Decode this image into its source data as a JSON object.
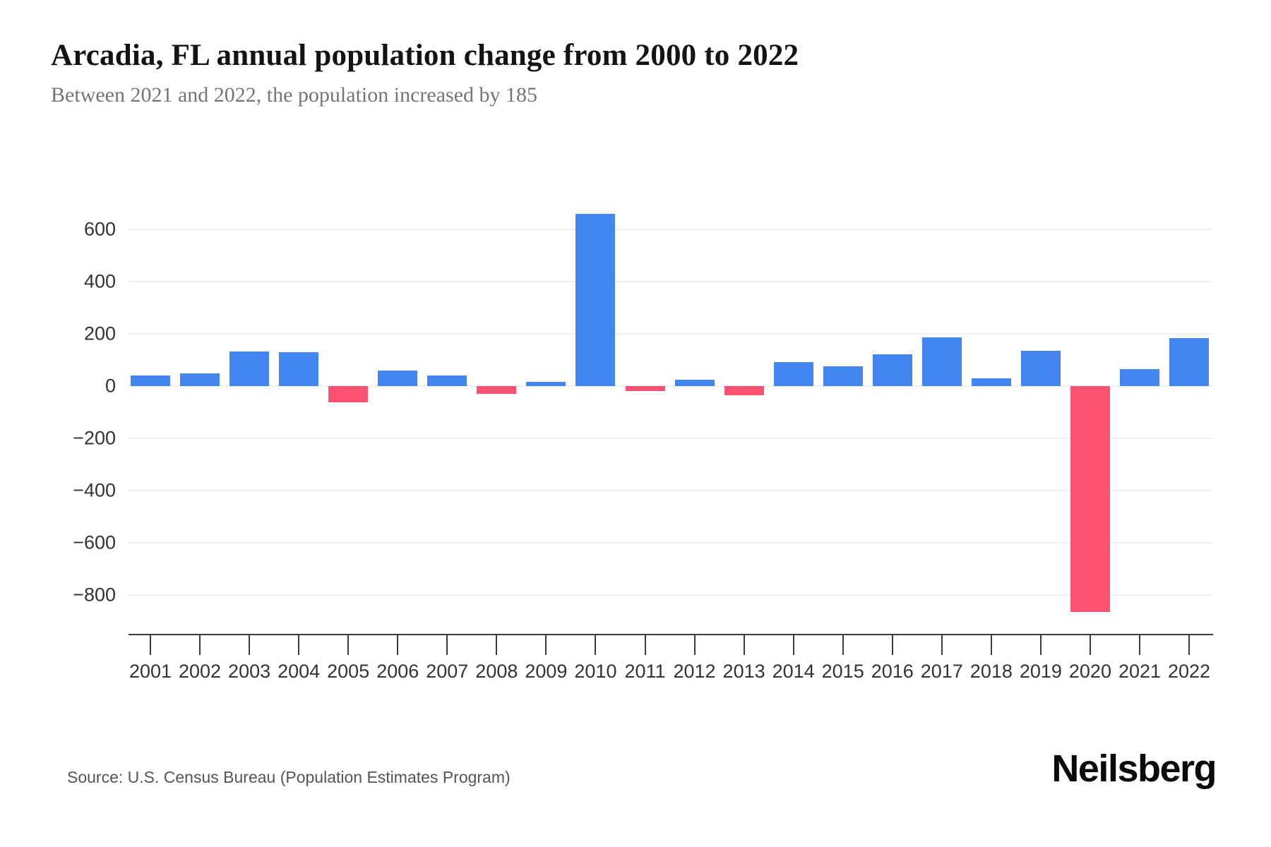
{
  "header": {
    "title": "Arcadia, FL annual population change from 2000 to 2022",
    "subtitle": "Between 2021 and 2022, the population increased by 185"
  },
  "footer": {
    "source": "Source: U.S. Census Bureau (Population Estimates Program)",
    "brand": "Neilsberg"
  },
  "chart_data": {
    "type": "bar",
    "title": "Arcadia, FL annual population change from 2000 to 2022",
    "subtitle": "Between 2021 and 2022, the population increased by 185",
    "categories": [
      "2001",
      "2002",
      "2003",
      "2004",
      "2005",
      "2006",
      "2007",
      "2008",
      "2009",
      "2010",
      "2011",
      "2012",
      "2013",
      "2014",
      "2015",
      "2016",
      "2017",
      "2018",
      "2019",
      "2020",
      "2021",
      "2022"
    ],
    "values": [
      40,
      48,
      133,
      131,
      -62,
      60,
      40,
      -31,
      17,
      661,
      -19,
      25,
      -36,
      93,
      77,
      123,
      188,
      29,
      135,
      -866,
      65,
      185
    ],
    "series_name": "Annual population change",
    "xlabel": "",
    "ylabel": "",
    "y_ticks": [
      600,
      400,
      200,
      0,
      -200,
      -400,
      -600,
      -800
    ],
    "ylim": [
      -950,
      800
    ],
    "grid": true,
    "legend": "none",
    "colors": {
      "positive": "#4486ef",
      "negative": "#fa5270",
      "gridline": "#f0f1f2",
      "axis": "#3c3c3c",
      "tick_label": "#333333"
    }
  }
}
